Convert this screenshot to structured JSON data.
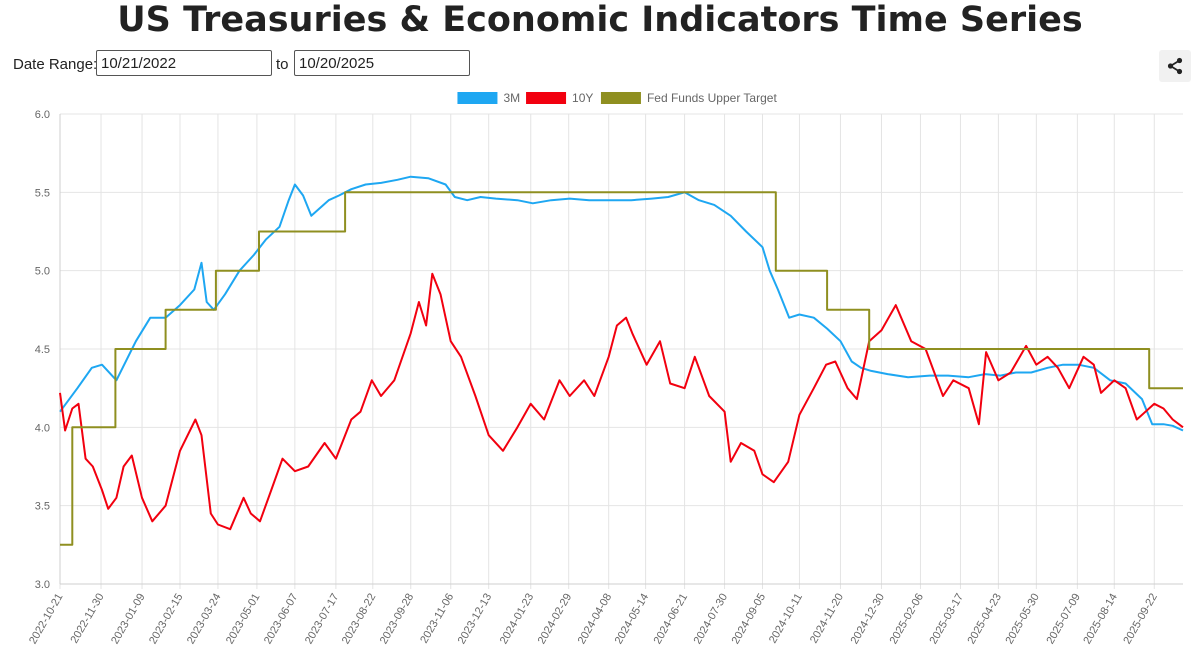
{
  "header": {
    "title": "US Treasuries & Economic Indicators Time Series"
  },
  "controls": {
    "date_range_label": "Date Range:",
    "to_label": "to",
    "start_date": "10/21/2022",
    "end_date": "10/20/2025",
    "share_icon": "share-icon"
  },
  "chart_data": {
    "type": "line",
    "title": "",
    "xlabel": "",
    "ylabel": "",
    "ylim": [
      3.0,
      6.0
    ],
    "yticks": [
      "3.0",
      "3.5",
      "4.0",
      "4.5",
      "5.0",
      "5.5",
      "6.0"
    ],
    "xlim": [
      "2022-10-21",
      "2025-10-20"
    ],
    "xticks": [
      "2022-10-21",
      "2022-11-30",
      "2023-01-09",
      "2023-02-15",
      "2023-03-24",
      "2023-05-01",
      "2023-06-07",
      "2023-07-17",
      "2023-08-22",
      "2023-09-28",
      "2023-11-06",
      "2023-12-13",
      "2024-01-23",
      "2024-02-29",
      "2024-04-08",
      "2024-05-14",
      "2024-06-21",
      "2024-07-30",
      "2024-09-05",
      "2024-10-11",
      "2024-11-20",
      "2024-12-30",
      "2025-02-06",
      "2025-03-17",
      "2025-04-23",
      "2025-05-30",
      "2025-07-09",
      "2025-08-14",
      "2025-09-22"
    ],
    "grid": true,
    "legend_position": "top-center",
    "series": [
      {
        "name": "3M",
        "color": "#1ea7f2",
        "x": [
          "2022-10-21",
          "2022-11-07",
          "2022-11-21",
          "2022-12-01",
          "2022-12-15",
          "2023-01-03",
          "2023-01-17",
          "2023-02-01",
          "2023-02-15",
          "2023-03-01",
          "2023-03-08",
          "2023-03-13",
          "2023-03-20",
          "2023-03-31",
          "2023-04-14",
          "2023-04-28",
          "2023-05-10",
          "2023-05-23",
          "2023-06-01",
          "2023-06-07",
          "2023-06-15",
          "2023-06-23",
          "2023-07-10",
          "2023-07-20",
          "2023-08-01",
          "2023-08-15",
          "2023-08-30",
          "2023-09-15",
          "2023-09-28",
          "2023-10-15",
          "2023-11-01",
          "2023-11-10",
          "2023-11-22",
          "2023-12-05",
          "2023-12-20",
          "2024-01-10",
          "2024-01-25",
          "2024-02-12",
          "2024-03-01",
          "2024-03-20",
          "2024-04-10",
          "2024-04-30",
          "2024-05-20",
          "2024-06-05",
          "2024-06-21",
          "2024-07-05",
          "2024-07-20",
          "2024-08-05",
          "2024-08-20",
          "2024-09-05",
          "2024-09-12",
          "2024-09-20",
          "2024-10-01",
          "2024-10-11",
          "2024-10-25",
          "2024-11-07",
          "2024-11-20",
          "2024-12-01",
          "2024-12-10",
          "2024-12-20",
          "2025-01-05",
          "2025-01-25",
          "2025-02-15",
          "2025-03-05",
          "2025-03-25",
          "2025-04-10",
          "2025-04-25",
          "2025-05-10",
          "2025-05-25",
          "2025-06-10",
          "2025-06-25",
          "2025-07-10",
          "2025-07-25",
          "2025-08-10",
          "2025-08-25",
          "2025-09-10",
          "2025-09-20",
          "2025-10-01",
          "2025-10-10",
          "2025-10-20"
        ],
        "values": [
          4.1,
          4.25,
          4.38,
          4.4,
          4.3,
          4.55,
          4.7,
          4.7,
          4.78,
          4.88,
          5.05,
          4.8,
          4.75,
          4.85,
          5.0,
          5.1,
          5.2,
          5.28,
          5.45,
          5.55,
          5.48,
          5.35,
          5.45,
          5.48,
          5.52,
          5.55,
          5.56,
          5.58,
          5.6,
          5.59,
          5.55,
          5.47,
          5.45,
          5.47,
          5.46,
          5.45,
          5.43,
          5.45,
          5.46,
          5.45,
          5.45,
          5.45,
          5.46,
          5.47,
          5.5,
          5.45,
          5.42,
          5.35,
          5.25,
          5.15,
          5.0,
          4.88,
          4.7,
          4.72,
          4.7,
          4.63,
          4.55,
          4.42,
          4.38,
          4.36,
          4.34,
          4.32,
          4.33,
          4.33,
          4.32,
          4.34,
          4.33,
          4.35,
          4.35,
          4.38,
          4.4,
          4.4,
          4.38,
          4.3,
          4.28,
          4.18,
          4.02,
          4.02,
          4.01,
          3.98
        ]
      },
      {
        "name": "10Y",
        "color": "#f2000f",
        "x": [
          "2022-10-21",
          "2022-10-26",
          "2022-11-02",
          "2022-11-08",
          "2022-11-15",
          "2022-11-22",
          "2022-12-01",
          "2022-12-07",
          "2022-12-15",
          "2022-12-22",
          "2022-12-30",
          "2023-01-09",
          "2023-01-19",
          "2023-02-01",
          "2023-02-15",
          "2023-03-02",
          "2023-03-08",
          "2023-03-17",
          "2023-03-24",
          "2023-04-05",
          "2023-04-18",
          "2023-04-25",
          "2023-05-04",
          "2023-05-15",
          "2023-05-26",
          "2023-06-07",
          "2023-06-20",
          "2023-07-06",
          "2023-07-17",
          "2023-08-01",
          "2023-08-10",
          "2023-08-21",
          "2023-08-30",
          "2023-09-12",
          "2023-09-28",
          "2023-10-06",
          "2023-10-13",
          "2023-10-19",
          "2023-10-27",
          "2023-11-06",
          "2023-11-16",
          "2023-11-30",
          "2023-12-13",
          "2023-12-27",
          "2024-01-10",
          "2024-01-23",
          "2024-02-05",
          "2024-02-20",
          "2024-03-01",
          "2024-03-15",
          "2024-03-25",
          "2024-04-08",
          "2024-04-16",
          "2024-04-25",
          "2024-05-01",
          "2024-05-15",
          "2024-05-28",
          "2024-06-07",
          "2024-06-21",
          "2024-07-01",
          "2024-07-15",
          "2024-07-30",
          "2024-08-05",
          "2024-08-15",
          "2024-08-28",
          "2024-09-05",
          "2024-09-16",
          "2024-09-30",
          "2024-10-11",
          "2024-10-25",
          "2024-11-06",
          "2024-11-15",
          "2024-11-27",
          "2024-12-06",
          "2024-12-18",
          "2024-12-30",
          "2025-01-13",
          "2025-01-28",
          "2025-02-11",
          "2025-02-28",
          "2025-03-10",
          "2025-03-25",
          "2025-04-04",
          "2025-04-11",
          "2025-04-23",
          "2025-05-05",
          "2025-05-20",
          "2025-05-30",
          "2025-06-10",
          "2025-06-20",
          "2025-07-01",
          "2025-07-15",
          "2025-07-25",
          "2025-08-01",
          "2025-08-14",
          "2025-08-25",
          "2025-09-05",
          "2025-09-22",
          "2025-10-01",
          "2025-10-10",
          "2025-10-20"
        ],
        "values": [
          4.22,
          3.98,
          4.12,
          4.15,
          3.8,
          3.75,
          3.6,
          3.48,
          3.55,
          3.75,
          3.82,
          3.55,
          3.4,
          3.5,
          3.85,
          4.05,
          3.95,
          3.45,
          3.38,
          3.35,
          3.55,
          3.45,
          3.4,
          3.6,
          3.8,
          3.72,
          3.75,
          3.9,
          3.8,
          4.05,
          4.1,
          4.3,
          4.2,
          4.3,
          4.6,
          4.8,
          4.65,
          4.98,
          4.85,
          4.55,
          4.45,
          4.2,
          3.95,
          3.85,
          4.0,
          4.15,
          4.05,
          4.3,
          4.2,
          4.3,
          4.2,
          4.45,
          4.65,
          4.7,
          4.6,
          4.4,
          4.55,
          4.28,
          4.25,
          4.45,
          4.2,
          4.1,
          3.78,
          3.9,
          3.85,
          3.7,
          3.65,
          3.78,
          4.08,
          4.25,
          4.4,
          4.42,
          4.25,
          4.18,
          4.55,
          4.62,
          4.78,
          4.55,
          4.5,
          4.2,
          4.3,
          4.25,
          4.02,
          4.48,
          4.3,
          4.35,
          4.52,
          4.4,
          4.45,
          4.38,
          4.25,
          4.45,
          4.4,
          4.22,
          4.3,
          4.25,
          4.05,
          4.15,
          4.12,
          4.05,
          4.0
        ]
      },
      {
        "name": "Fed Funds Upper Target",
        "color": "#8f8f20",
        "x": [
          "2022-10-21",
          "2022-11-02",
          "2022-12-14",
          "2023-02-01",
          "2023-03-22",
          "2023-05-03",
          "2023-07-26",
          "2024-09-18",
          "2024-11-07",
          "2024-12-18",
          "2025-09-17",
          "2025-10-20"
        ],
        "values": [
          3.25,
          4.0,
          4.5,
          4.75,
          5.0,
          5.25,
          5.5,
          5.0,
          4.75,
          4.5,
          4.25,
          4.25
        ]
      }
    ]
  }
}
